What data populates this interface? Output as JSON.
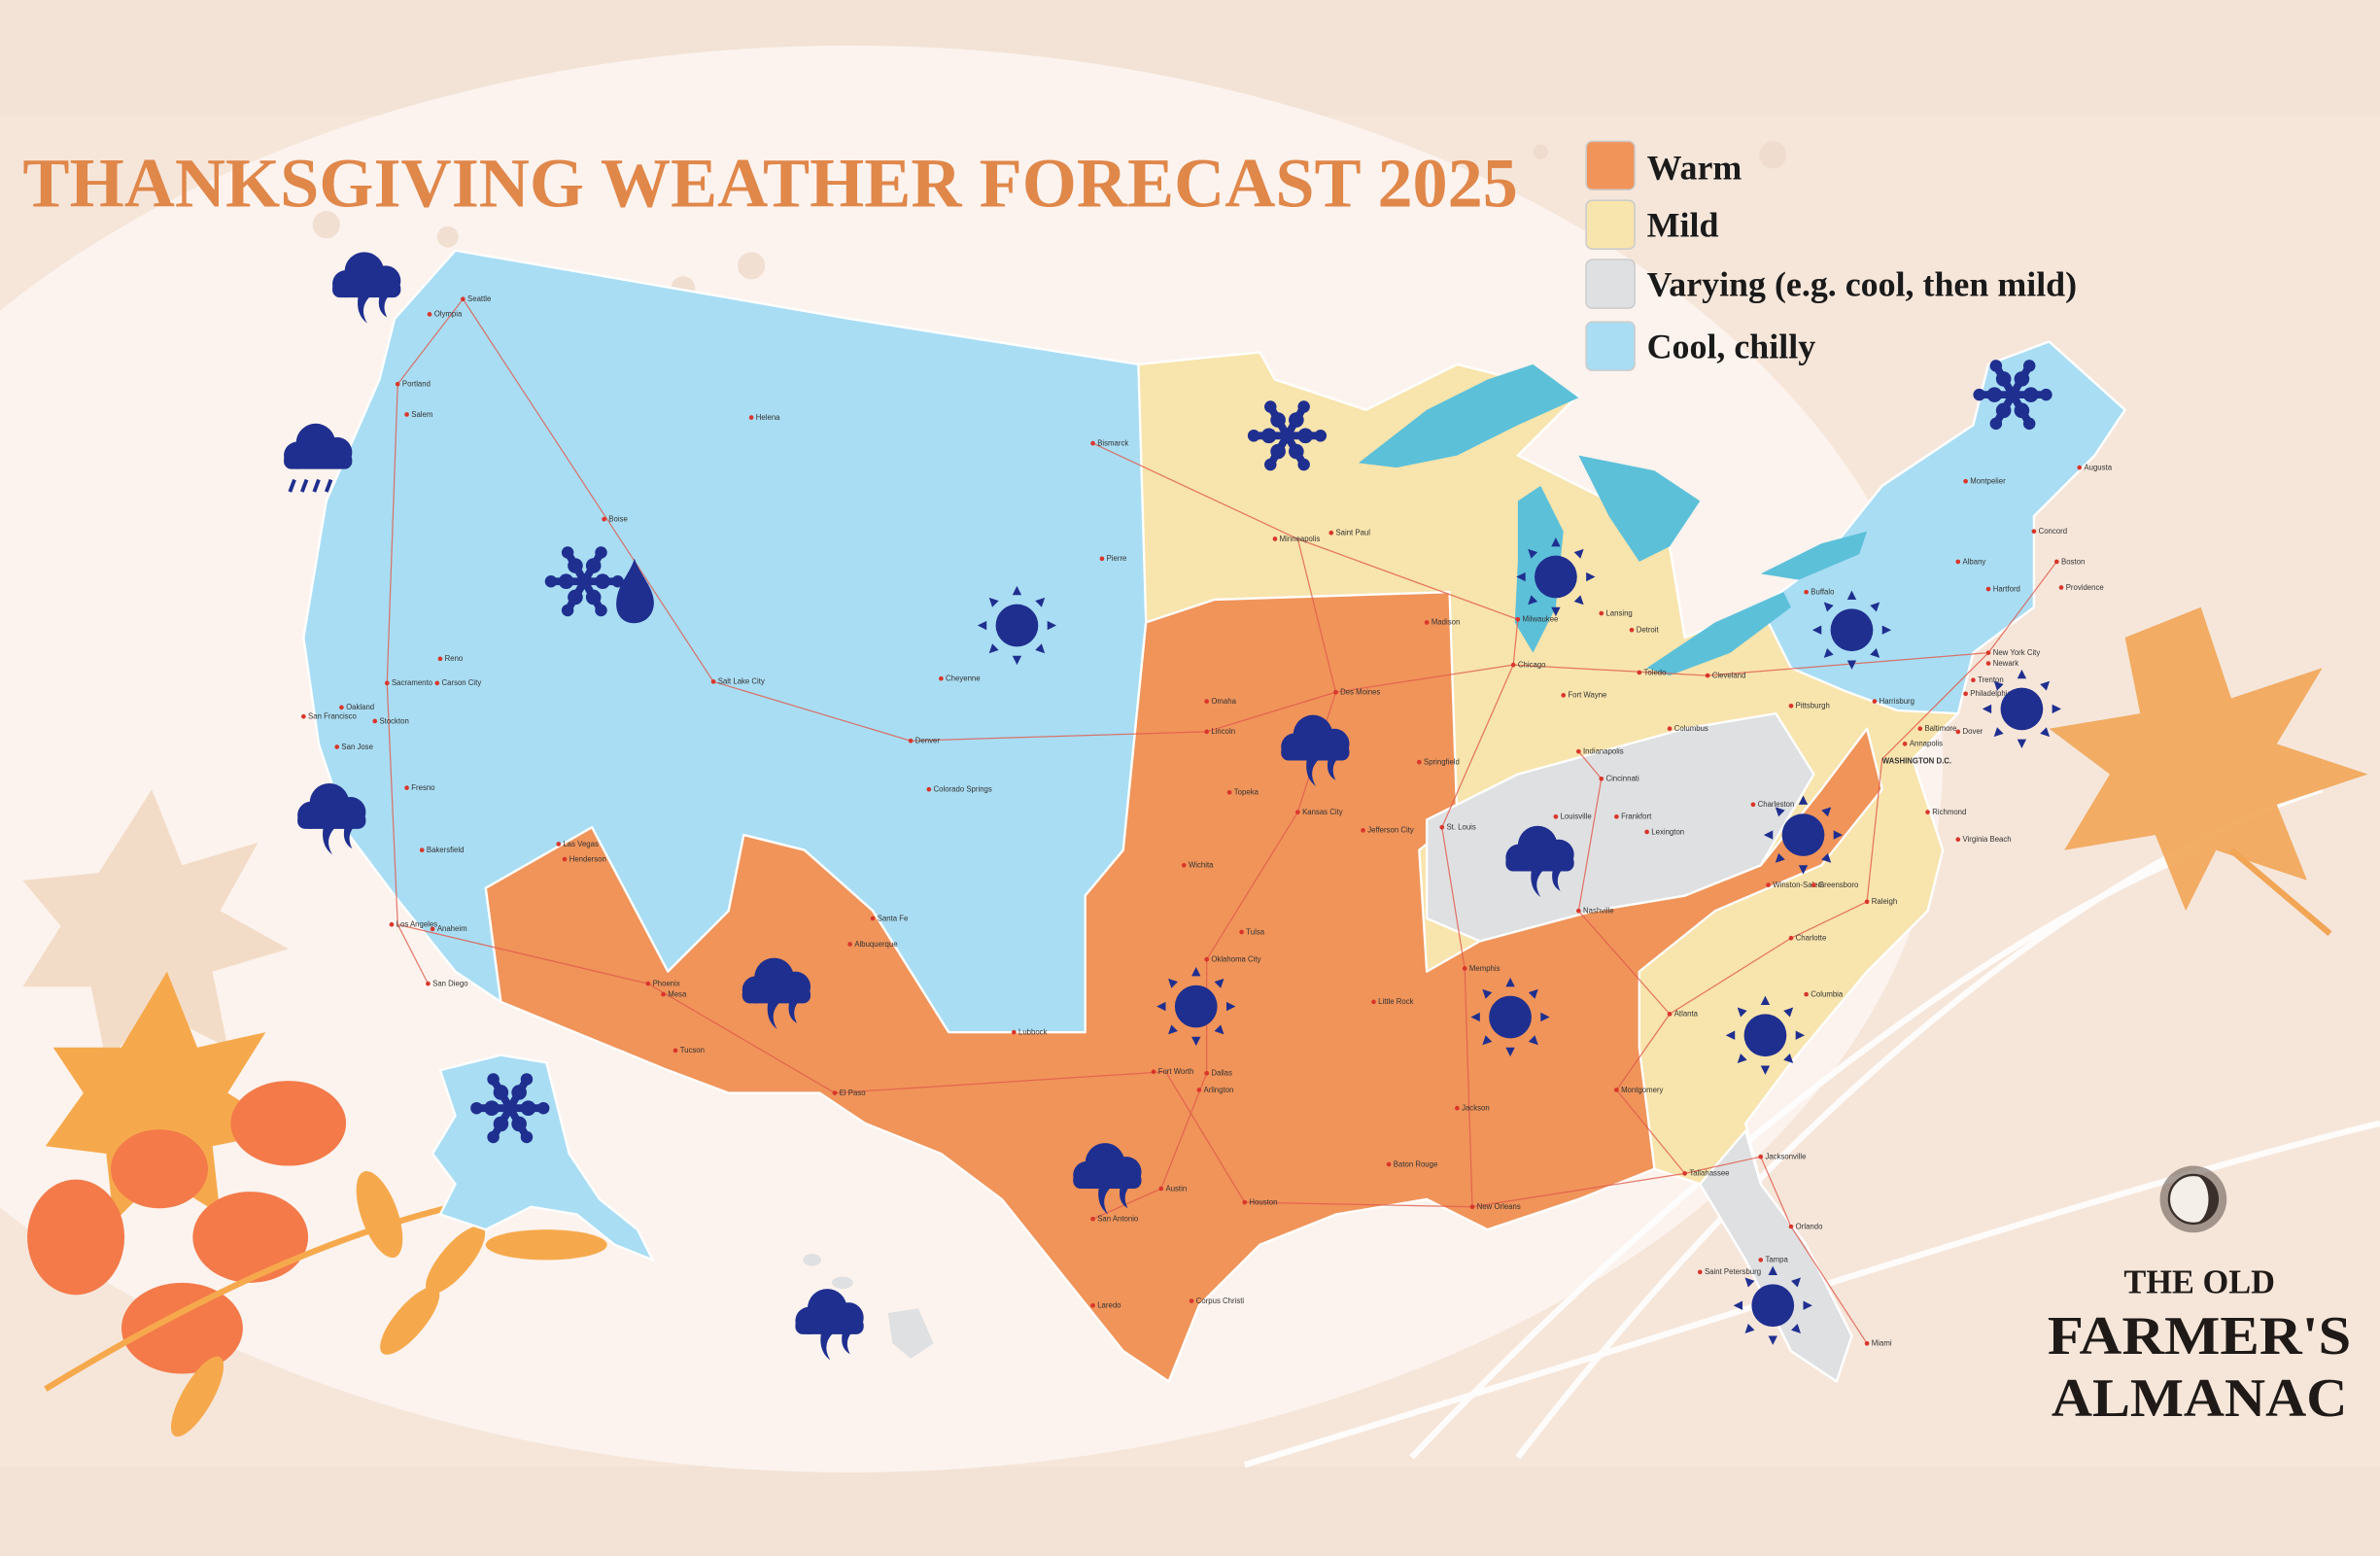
{
  "title": "THANKSGIVING WEATHER FORECAST 2025",
  "legend": [
    {
      "label": "Warm",
      "color": "#f0945a"
    },
    {
      "label": "Mild",
      "color": "#f8e4ad"
    },
    {
      "label": "Varying (e.g. cool, then mild)",
      "color": "#dfe0e2"
    },
    {
      "label": "Cool, chilly",
      "color": "#a9ddf3"
    }
  ],
  "colors": {
    "title": "#e0874a",
    "icons": "#1f2f8f",
    "lakes": "#5cc0d9",
    "roads": "#e05a4a",
    "background": "#fbf2ec"
  },
  "logo": {
    "line1": "THE OLD",
    "line2": "FARMER'S",
    "line3": "ALMANAC"
  },
  "capital_label": "WASHINGTON D.C.",
  "icons": {
    "rain_cloud": "rain-cloud-icon",
    "snow": "snowflake-icon",
    "sun": "sun-icon",
    "drop": "raindrop-icon"
  },
  "cities": [
    "Seattle",
    "Olympia",
    "Portland",
    "Salem",
    "Boise",
    "Helena",
    "Bismarck",
    "Pierre",
    "Sacramento",
    "Carson City",
    "Reno",
    "San Francisco",
    "Oakland",
    "San Jose",
    "Stockton",
    "Fresno",
    "Bakersfield",
    "Los Angeles",
    "Anaheim",
    "San Diego",
    "Las Vegas",
    "Henderson",
    "Phoenix",
    "Mesa",
    "Tucson",
    "Salt Lake City",
    "Cheyenne",
    "Denver",
    "Colorado Springs",
    "Santa Fe",
    "Albuquerque",
    "El Paso",
    "Lubbock",
    "Minneapolis",
    "Saint Paul",
    "Omaha",
    "Lincoln",
    "Des Moines",
    "Topeka",
    "Kansas City",
    "Wichita",
    "Jefferson City",
    "Oklahoma City",
    "Tulsa",
    "Fort Worth",
    "Dallas",
    "Arlington",
    "Austin",
    "San Antonio",
    "Houston",
    "Laredo",
    "Corpus Christi",
    "Little Rock",
    "Memphis",
    "Jackson",
    "Baton Rouge",
    "New Orleans",
    "Montgomery",
    "Atlanta",
    "Nashville",
    "Madison",
    "Milwaukee",
    "Chicago",
    "Springfield",
    "St. Louis",
    "Indianapolis",
    "Fort Wayne",
    "Lansing",
    "Detroit",
    "Toledo",
    "Cleveland",
    "Columbus",
    "Cincinnati",
    "Louisville",
    "Frankfort",
    "Lexington",
    "Pittsburgh",
    "Charleston",
    "Buffalo",
    "Albany",
    "Montpelier",
    "Concord",
    "Augusta",
    "Boston",
    "Providence",
    "Hartford",
    "New York City",
    "Newark",
    "Philadelphia",
    "Trenton",
    "Harrisburg",
    "Baltimore",
    "Annapolis",
    "Dover",
    "Richmond",
    "Virginia Beach",
    "Winston-Salem",
    "Greensboro",
    "Raleigh",
    "Charlotte",
    "Columbia",
    "Jacksonville",
    "Tallahassee",
    "Orlando",
    "Tampa",
    "Saint Petersburg",
    "Miami"
  ]
}
